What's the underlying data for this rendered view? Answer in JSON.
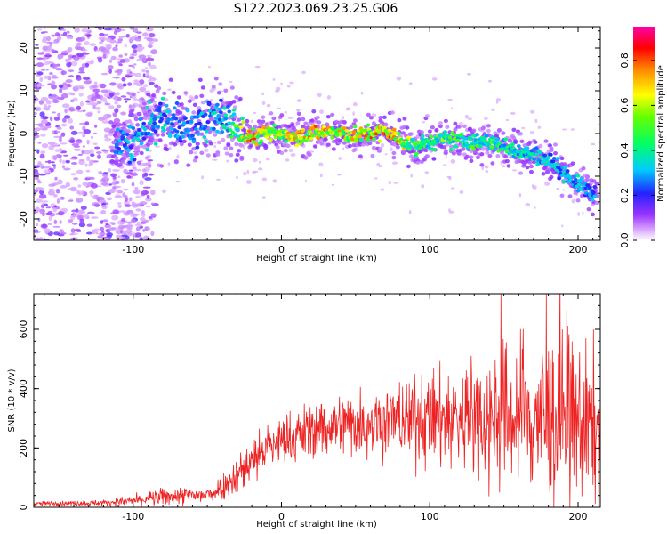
{
  "title": "S122.2023.069.23.25.G06",
  "colors": {
    "snr_line": "#ee2222",
    "spectrogram_low": "#cc66ff",
    "spectrogram_mid": "#33cc33",
    "spectrogram_high": "#ff2222"
  },
  "chart_data": [
    {
      "type": "heatmap",
      "xlabel": "Height of straight line (km)",
      "ylabel": "Frequency (Hz)",
      "xlim": [
        -167,
        215
      ],
      "ylim": [
        -25,
        25
      ],
      "x_ticks": [
        -100,
        0,
        100,
        200
      ],
      "y_ticks": [
        -20,
        -10,
        0,
        10,
        20
      ],
      "colorbar": {
        "label": "Normalized spectral amplitude",
        "ticks": [
          "0.0",
          "0.2",
          "0.4",
          "0.6",
          "0.8"
        ],
        "range": [
          0,
          0.95
        ],
        "colormap": "rainbow"
      },
      "ridge": {
        "x": [
          -110,
          -100,
          -90,
          -80,
          -70,
          -60,
          -50,
          -40,
          -30,
          -20,
          -10,
          0,
          10,
          20,
          30,
          40,
          50,
          60,
          70,
          80,
          90,
          100,
          110,
          120,
          130,
          140,
          150,
          160,
          170,
          180,
          190,
          200,
          210
        ],
        "freq": [
          -3,
          -2,
          1,
          4,
          2,
          1,
          3,
          4,
          1,
          -1,
          0,
          0,
          -0.5,
          0,
          0.5,
          0,
          -0.5,
          0,
          0.5,
          -1.5,
          -3,
          -2,
          -1.5,
          -1.5,
          -2,
          -2,
          -3,
          -4,
          -5,
          -6,
          -9,
          -12,
          -14
        ],
        "amp": [
          0.3,
          0.35,
          0.35,
          0.35,
          0.3,
          0.3,
          0.35,
          0.35,
          0.55,
          0.8,
          0.65,
          0.65,
          0.75,
          0.75,
          0.75,
          0.75,
          0.7,
          0.75,
          0.8,
          0.75,
          0.5,
          0.5,
          0.55,
          0.5,
          0.5,
          0.5,
          0.45,
          0.4,
          0.4,
          0.35,
          0.35,
          0.35,
          0.3
        ]
      },
      "noise_region_x": [
        -167,
        -100
      ]
    },
    {
      "type": "line",
      "xlabel": "Height of straight line (km)",
      "ylabel": "SNR (10 * v/v)",
      "xlim": [
        -167,
        215
      ],
      "ylim": [
        0,
        720
      ],
      "x_ticks": [
        -100,
        0,
        100,
        200
      ],
      "y_ticks": [
        0,
        200,
        400,
        600
      ],
      "series": [
        {
          "x": [
            -167,
            -120,
            -100,
            -80,
            -60,
            -50,
            -40,
            -30,
            -20,
            -10,
            0,
            20,
            40,
            60,
            80,
            100,
            120,
            140,
            160,
            180,
            200,
            215
          ],
          "mean": [
            12,
            15,
            22,
            35,
            40,
            40,
            70,
            110,
            160,
            200,
            220,
            260,
            280,
            290,
            295,
            300,
            300,
            300,
            300,
            300,
            280,
            260
          ],
          "spread": [
            6,
            8,
            15,
            25,
            25,
            25,
            35,
            55,
            70,
            70,
            70,
            80,
            90,
            100,
            110,
            130,
            150,
            180,
            220,
            240,
            230,
            200
          ],
          "peak_max": 720
        }
      ]
    }
  ]
}
